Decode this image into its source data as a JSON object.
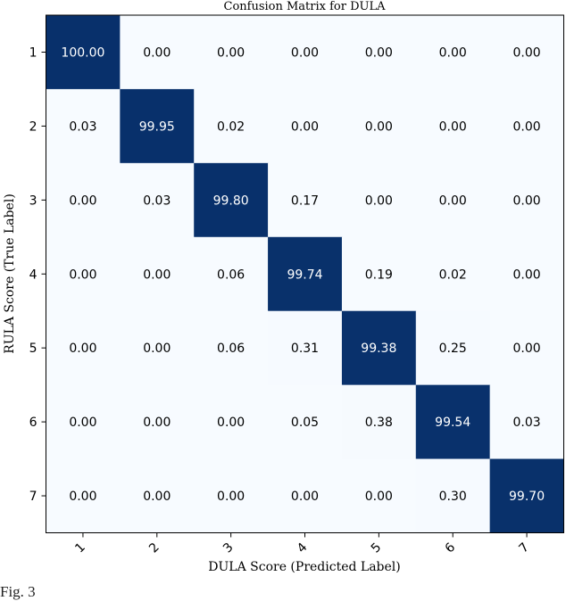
{
  "chart_data": {
    "type": "heatmap",
    "title": "Confusion Matrix for DULA",
    "xlabel": "DULA Score (Predicted Label)",
    "ylabel": "RULA Score (True Label)",
    "x_categories": [
      "1",
      "2",
      "3",
      "4",
      "5",
      "6",
      "7"
    ],
    "y_categories": [
      "1",
      "2",
      "3",
      "4",
      "5",
      "6",
      "7"
    ],
    "values": [
      [
        100.0,
        0.0,
        0.0,
        0.0,
        0.0,
        0.0,
        0.0
      ],
      [
        0.03,
        99.95,
        0.02,
        0.0,
        0.0,
        0.0,
        0.0
      ],
      [
        0.0,
        0.03,
        99.8,
        0.17,
        0.0,
        0.0,
        0.0
      ],
      [
        0.0,
        0.0,
        0.06,
        99.74,
        0.19,
        0.02,
        0.0
      ],
      [
        0.0,
        0.0,
        0.06,
        0.31,
        99.38,
        0.25,
        0.0
      ],
      [
        0.0,
        0.0,
        0.0,
        0.05,
        0.38,
        99.54,
        0.03
      ],
      [
        0.0,
        0.0,
        0.0,
        0.0,
        0.0,
        0.3,
        99.7
      ]
    ],
    "colormap": {
      "low": "#f7fbff",
      "high": "#08306b"
    },
    "value_range": [
      0,
      100
    ],
    "grid": false
  },
  "caption": "Fig. 3"
}
